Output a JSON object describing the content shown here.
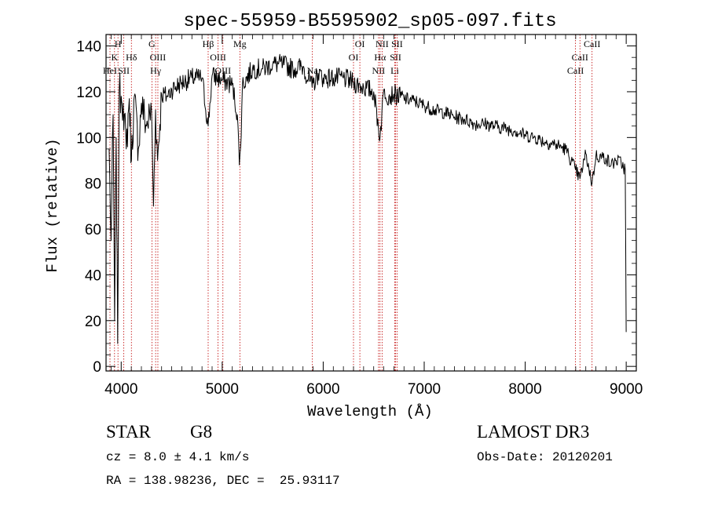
{
  "chart_data": {
    "type": "line",
    "title": "spec-55959-B5595902_sp05-097.fits",
    "xlabel": "Wavelength (Å)",
    "ylabel": "Flux (relative)",
    "xlim": [
      3850,
      9100
    ],
    "ylim": [
      -2,
      145
    ],
    "xticks": [
      4000,
      5000,
      6000,
      7000,
      8000,
      9000
    ],
    "xtick_labels": [
      "4000",
      "5000",
      "6000",
      "7000",
      "8000",
      "9000"
    ],
    "yticks": [
      0,
      20,
      40,
      60,
      80,
      100,
      120,
      140
    ],
    "ytick_labels": [
      "0",
      "20",
      "40",
      "60",
      "80",
      "100",
      "120",
      "140"
    ],
    "grid": false,
    "series": [
      {
        "name": "flux",
        "x": [
          3880,
          3900,
          3920,
          3935,
          3950,
          3965,
          3980,
          4000,
          4020,
          4050,
          4080,
          4101,
          4130,
          4170,
          4200,
          4250,
          4300,
          4320,
          4340,
          4360,
          4400,
          4450,
          4500,
          4600,
          4700,
          4800,
          4861,
          4900,
          5000,
          5100,
          5150,
          5170,
          5183,
          5200,
          5300,
          5400,
          5500,
          5600,
          5700,
          5800,
          5890,
          5950,
          6000,
          6100,
          6200,
          6300,
          6400,
          6500,
          6563,
          6600,
          6650,
          6700,
          6800,
          6900,
          7000,
          7100,
          7200,
          7300,
          7400,
          7500,
          7600,
          7700,
          7800,
          7900,
          8000,
          8100,
          8200,
          8300,
          8400,
          8498,
          8542,
          8600,
          8662,
          8700,
          8800,
          8850,
          8900,
          8950,
          8990,
          9000
        ],
        "y": [
          95,
          55,
          110,
          20,
          100,
          10,
          120,
          118,
          115,
          95,
          117,
          90,
          118,
          95,
          115,
          105,
          112,
          70,
          112,
          90,
          119,
          118,
          121,
          124,
          126,
          126,
          105,
          127,
          125,
          123,
          110,
          88,
          96,
          123,
          130,
          130,
          132,
          132,
          130,
          131,
          122,
          128,
          126,
          126,
          126,
          124,
          122,
          120,
          100,
          121,
          118,
          119,
          117,
          116,
          114,
          112,
          111,
          109,
          108,
          106,
          106,
          105,
          104,
          103,
          101,
          100,
          98,
          97,
          95,
          86,
          82,
          93,
          80,
          92,
          91,
          88,
          90,
          89,
          86,
          15
        ]
      }
    ],
    "line_markers": [
      {
        "wavelength": 3934,
        "label": "K",
        "row": 1
      },
      {
        "wavelength": 3968,
        "label": "H",
        "row": 0
      },
      {
        "wavelength": 3889,
        "label": "HeI",
        "row": 2
      },
      {
        "wavelength": 4026,
        "label": "SII",
        "row": 2
      },
      {
        "wavelength": 4101,
        "label": "Hδ",
        "row": 1
      },
      {
        "wavelength": 4304,
        "label": "G",
        "row": 0
      },
      {
        "wavelength": 4341,
        "label": "Hγ",
        "row": 2
      },
      {
        "wavelength": 4363,
        "label": "OIII",
        "row": 1
      },
      {
        "wavelength": 4861,
        "label": "Hβ",
        "row": 0
      },
      {
        "wavelength": 4959,
        "label": "OIII",
        "row": 1
      },
      {
        "wavelength": 5007,
        "label": "OIII",
        "row": 2
      },
      {
        "wavelength": 5175,
        "label": "Mg",
        "row": 0
      },
      {
        "wavelength": 5893,
        "label": "Na",
        "row": 2
      },
      {
        "wavelength": 6300,
        "label": "OI",
        "row": 1
      },
      {
        "wavelength": 6363,
        "label": "OI",
        "row": 0
      },
      {
        "wavelength": 6548,
        "label": "NII",
        "row": 2
      },
      {
        "wavelength": 6563,
        "label": "Hα",
        "row": 1
      },
      {
        "wavelength": 6583,
        "label": "NII",
        "row": 0
      },
      {
        "wavelength": 6708,
        "label": "Li",
        "row": 2
      },
      {
        "wavelength": 6717,
        "label": "SII",
        "row": 1
      },
      {
        "wavelength": 6731,
        "label": "SII",
        "row": 0
      },
      {
        "wavelength": 8498,
        "label": "CaII",
        "row": 2
      },
      {
        "wavelength": 8542,
        "label": "CaII",
        "row": 1
      },
      {
        "wavelength": 8662,
        "label": "CaII",
        "row": 0
      }
    ]
  },
  "info": {
    "object_class": "STAR",
    "subclass": "G8",
    "survey": "LAMOST DR3",
    "redshift": "cz = 8.0 ± 4.1 km/s",
    "obs_date": "Obs-Date: 20120201",
    "coordinates": "RA = 138.98236, DEC =  25.93117"
  },
  "colors": {
    "spectrum": "#000000",
    "marker_line": "#c00000",
    "axis": "#000000",
    "background": "#ffffff"
  }
}
